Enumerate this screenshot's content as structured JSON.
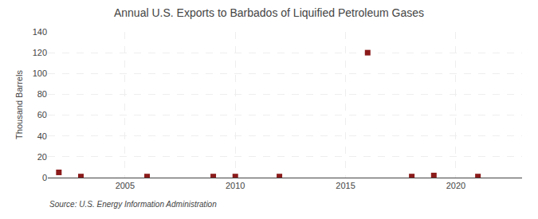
{
  "chart_data": {
    "type": "scatter",
    "title": "Annual U.S. Exports to Barbados of Liquified Petroleum Gases",
    "ylabel": "Thousand Barrels",
    "annotations": [
      "Source: U.S. Energy Information Administration"
    ],
    "x": [
      2002,
      2003,
      2006,
      2009,
      2010,
      2012,
      2016,
      2018,
      2019,
      2021
    ],
    "values": [
      5,
      1,
      1,
      1,
      1,
      1,
      120,
      1,
      2,
      1
    ],
    "color": "#8b1a1a",
    "marker": "square",
    "xlim": [
      2001.5,
      2023
    ],
    "xticks": [
      2005,
      2010,
      2015,
      2020
    ],
    "ylim": [
      0,
      140
    ],
    "yticks": [
      0,
      20,
      40,
      60,
      80,
      100,
      120,
      140
    ],
    "grid": true
  }
}
